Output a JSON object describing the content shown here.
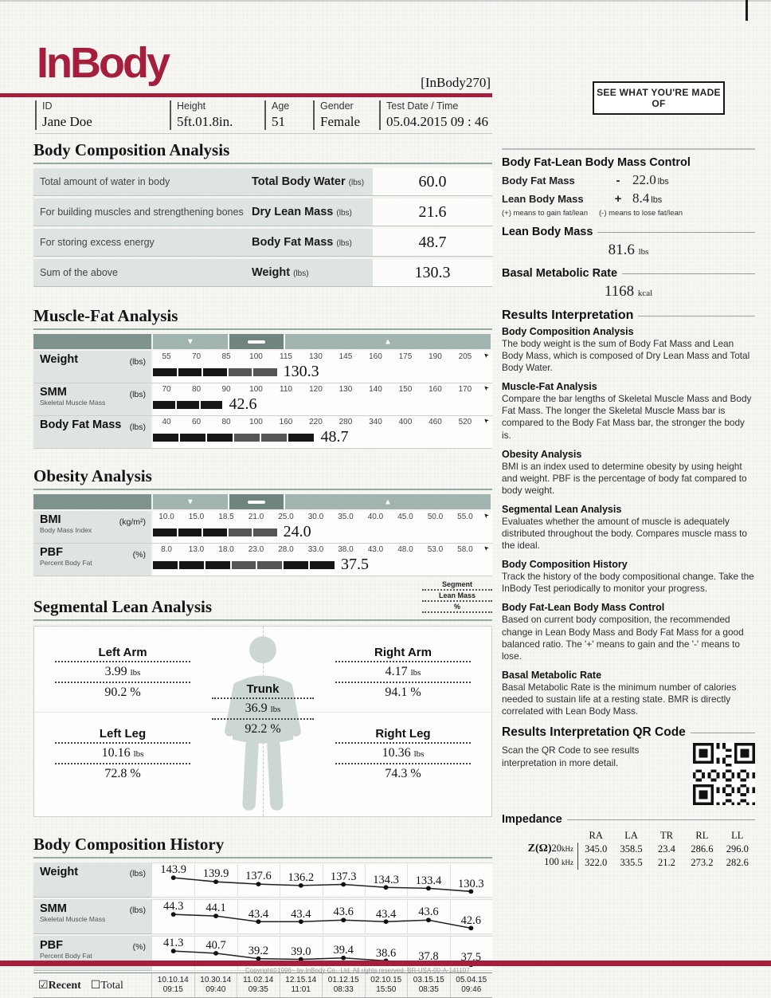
{
  "header": {
    "logo": "InBody",
    "model": "[InBody270]",
    "tagline": "SEE WHAT YOU'RE MADE OF",
    "fields": [
      {
        "label": "ID",
        "value": "Jane Doe"
      },
      {
        "label": "Height",
        "value": "5ft.01.8in."
      },
      {
        "label": "Age",
        "value": "51"
      },
      {
        "label": "Gender",
        "value": "Female"
      },
      {
        "label": "Test Date / Time",
        "value": "05.04.2015  09 : 46"
      }
    ]
  },
  "body_composition": {
    "title": "Body Composition Analysis",
    "rows": [
      {
        "desc": "Total amount of water in body",
        "label": "Total Body Water",
        "unit": "(lbs)",
        "value": "60.0"
      },
      {
        "desc": "For building muscles and strengthening bones",
        "label": "Dry Lean Mass",
        "unit": "(lbs)",
        "value": "21.6"
      },
      {
        "desc": "For storing excess energy",
        "label": "Body Fat Mass",
        "unit": "(lbs)",
        "value": "48.7"
      },
      {
        "desc": "Sum of the above",
        "label": "Weight",
        "unit": "(lbs)",
        "value": "130.3"
      }
    ]
  },
  "markers": {
    "under": "▼",
    "over": "▲"
  },
  "muscle_fat": {
    "title": "Muscle-Fat Analysis",
    "rows": [
      {
        "label": "Weight",
        "sub": "",
        "unit": "(lbs)",
        "ticks": [
          "55",
          "70",
          "85",
          "100",
          "115",
          "130",
          "145",
          "160",
          "175",
          "190",
          "205"
        ],
        "value": "130.3",
        "bar_pct": 37,
        "segments": [
          "k",
          "k",
          "k",
          "g",
          "g"
        ]
      },
      {
        "label": "SMM",
        "sub": "Skeletal Muscle Mass",
        "unit": "(lbs)",
        "ticks": [
          "70",
          "80",
          "90",
          "100",
          "110",
          "120",
          "130",
          "140",
          "150",
          "160",
          "170"
        ],
        "value": "42.6",
        "bar_pct": 21,
        "segments": [
          "k",
          "k",
          "k"
        ]
      },
      {
        "label": "Body Fat Mass",
        "sub": "",
        "unit": "(lbs)",
        "ticks": [
          "40",
          "60",
          "80",
          "100",
          "160",
          "220",
          "280",
          "340",
          "400",
          "460",
          "520"
        ],
        "value": "48.7",
        "bar_pct": 48,
        "segments": [
          "k",
          "k",
          "k",
          "g",
          "g",
          "k"
        ]
      }
    ]
  },
  "obesity": {
    "title": "Obesity Analysis",
    "rows": [
      {
        "label": "BMI",
        "sub": "Body Mass Index",
        "unit": "(kg/m²)",
        "ticks": [
          "10.0",
          "15.0",
          "18.5",
          "21.0",
          "25.0",
          "30.0",
          "35.0",
          "40.0",
          "45.0",
          "50.0",
          "55.0"
        ],
        "value": "24.0",
        "bar_pct": 37,
        "segments": [
          "k",
          "k",
          "k",
          "g",
          "g"
        ]
      },
      {
        "label": "PBF",
        "sub": "Percent Body Fat",
        "unit": "(%)",
        "ticks": [
          "8.0",
          "13.0",
          "18.0",
          "23.0",
          "28.0",
          "33.0",
          "38.0",
          "43.0",
          "48.0",
          "53.0",
          "58.0"
        ],
        "value": "37.5",
        "bar_pct": 54,
        "segments": [
          "k",
          "k",
          "k",
          "g",
          "g",
          "k",
          "k"
        ]
      }
    ]
  },
  "segmental": {
    "title": "Segmental Lean Analysis",
    "legend": [
      "Segment",
      "Lean Mass",
      "%"
    ],
    "parts": [
      {
        "name": "Left Arm",
        "mass": "3.99",
        "mass_unit": "lbs",
        "pct": "90.2",
        "pct_unit": "%"
      },
      {
        "name": "Right Arm",
        "mass": "4.17",
        "mass_unit": "lbs",
        "pct": "94.1",
        "pct_unit": "%"
      },
      {
        "name": "Trunk",
        "mass": "36.9",
        "mass_unit": "lbs",
        "pct": "92.2",
        "pct_unit": "%"
      },
      {
        "name": "Left Leg",
        "mass": "10.16",
        "mass_unit": "lbs",
        "pct": "72.8",
        "pct_unit": "%"
      },
      {
        "name": "Right Leg",
        "mass": "10.36",
        "mass_unit": "lbs",
        "pct": "74.3",
        "pct_unit": "%"
      }
    ]
  },
  "history": {
    "title": "Body Composition History",
    "recent_label": "Recent",
    "total_label": "Total",
    "rows": [
      {
        "label": "Weight",
        "sub": "",
        "unit": "(lbs)",
        "values": [
          143.9,
          139.9,
          137.6,
          136.2,
          137.3,
          134.3,
          133.4,
          130.3
        ]
      },
      {
        "label": "SMM",
        "sub": "Skeletal Muscle Mass",
        "unit": "(lbs)",
        "values": [
          44.3,
          44.1,
          43.4,
          43.4,
          43.6,
          43.4,
          43.6,
          42.6
        ]
      },
      {
        "label": "PBF",
        "sub": "Percent Body Fat",
        "unit": "(%)",
        "values": [
          41.3,
          40.7,
          39.2,
          39.0,
          39.4,
          38.6,
          37.8,
          37.5
        ]
      }
    ],
    "dates": [
      {
        "date": "10.10.14",
        "time": "09:15"
      },
      {
        "date": "10.30.14",
        "time": "09:40"
      },
      {
        "date": "11.02.14",
        "time": "09:35"
      },
      {
        "date": "12.15.14",
        "time": "11:01"
      },
      {
        "date": "01.12.15",
        "time": "08:33"
      },
      {
        "date": "02.10.15",
        "time": "15:50"
      },
      {
        "date": "03.15.15",
        "time": "08:35"
      },
      {
        "date": "05.04.15",
        "time": "09:46"
      }
    ]
  },
  "control": {
    "title": "Body Fat-Lean Body Mass Control",
    "rows": [
      {
        "name": "Body Fat Mass",
        "sign": "-",
        "value": "22.0",
        "unit": "lbs"
      },
      {
        "name": "Lean Body Mass",
        "sign": "+",
        "value": "8.4",
        "unit": "lbs"
      }
    ],
    "note_plus": "(+) means to gain fat/lean",
    "note_minus": "(-) means to lose fat/lean"
  },
  "lean_body_mass": {
    "title": "Lean Body Mass",
    "value": "81.6",
    "unit": "lbs"
  },
  "bmr": {
    "title": "Basal Metabolic Rate",
    "value": "1168",
    "unit": "kcal"
  },
  "interpretation": {
    "title": "Results Interpretation",
    "items": [
      {
        "heading": "Body Composition Analysis",
        "text": "The body weight is the sum of Body Fat Mass and Lean Body Mass, which is composed of Dry Lean Mass and Total Body Water."
      },
      {
        "heading": "Muscle-Fat Analysis",
        "text": "Compare the bar lengths of Skeletal Muscle Mass and Body Fat Mass. The longer the Skeletal Muscle Mass bar is compared to the Body Fat Mass bar, the stronger the body is."
      },
      {
        "heading": "Obesity Analysis",
        "text": "BMI is an index used to determine obesity by using height and weight. PBF is the percentage of body fat compared to body weight."
      },
      {
        "heading": "Segmental Lean Analysis",
        "text": "Evaluates whether the amount of muscle is adequately distributed throughout the body. Compares muscle mass to the ideal."
      },
      {
        "heading": "Body Composition History",
        "text": "Track the history of the body compositional change. Take the InBody Test periodically to monitor your progress."
      },
      {
        "heading": "Body Fat-Lean Body Mass Control",
        "text": "Based on current body composition, the recommended change in Lean Body Mass and Body Fat Mass for a good balanced ratio. The '+' means to gain and the '-' means to lose."
      },
      {
        "heading": "Basal Metabolic Rate",
        "text": "Basal Metabolic Rate is the minimum number of calories needed to sustain life at a resting state. BMR is directly correlated with Lean Body Mass."
      }
    ]
  },
  "qr": {
    "title": "Results Interpretation QR Code",
    "text": "Scan the QR Code to see results interpretation in more detail."
  },
  "impedance": {
    "title": "Impedance",
    "cols": [
      "RA",
      "LA",
      "TR",
      "RL",
      "LL"
    ],
    "rows": [
      {
        "label": "Z(Ω)20",
        "unit": "kHz",
        "values": [
          "345.0",
          "358.5",
          "23.4",
          "286.6",
          "296.0"
        ]
      },
      {
        "label": "100",
        "unit": "kHz",
        "values": [
          "322.0",
          "335.5",
          "21.2",
          "273.2",
          "282.6"
        ]
      }
    ]
  },
  "footer": {
    "copyright": "Copyright©1996~ by InBody Co., Ltd. All rights reserved. BR-USA-00-A-141107"
  },
  "colors": {
    "brand": "#a51e3c",
    "chart_teal_light": "#a2b4b0",
    "chart_teal_dark": "#70857f",
    "label_bg": "#dde4e1"
  }
}
